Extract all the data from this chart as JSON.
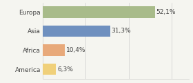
{
  "categories": [
    "Europa",
    "Asia",
    "Africa",
    "America"
  ],
  "values": [
    52.1,
    31.3,
    10.4,
    6.3
  ],
  "labels": [
    "52,1%",
    "31,3%",
    "10,4%",
    "6,3%"
  ],
  "bar_colors": [
    "#a8bb8a",
    "#6f90bf",
    "#e8a97a",
    "#f0d07a"
  ],
  "background_color": "#f5f5f0",
  "xlim": [
    0,
    68
  ],
  "label_fontsize": 6.5,
  "category_fontsize": 6.5,
  "bar_height": 0.6
}
